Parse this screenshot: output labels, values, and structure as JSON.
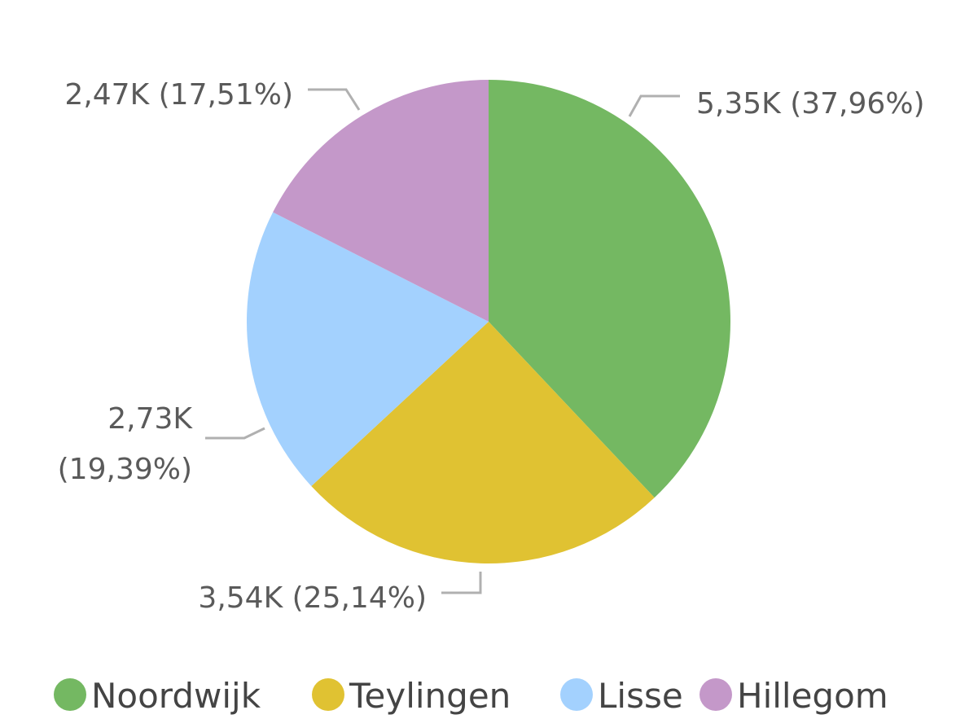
{
  "chart_data": {
    "type": "pie",
    "categories": [
      "Noordwijk",
      "Teylingen",
      "Lisse",
      "Hillegom"
    ],
    "values": [
      5350,
      3540,
      2730,
      2470
    ],
    "value_labels": [
      "5,35K (37,96%)",
      "3,54K (25,14%)",
      "2,73K (19,39%)",
      "2,47K (17,51%)"
    ],
    "colors": [
      "#74b862",
      "#e0c232",
      "#a3d1fe",
      "#c498c9"
    ],
    "legend": "bottom"
  }
}
